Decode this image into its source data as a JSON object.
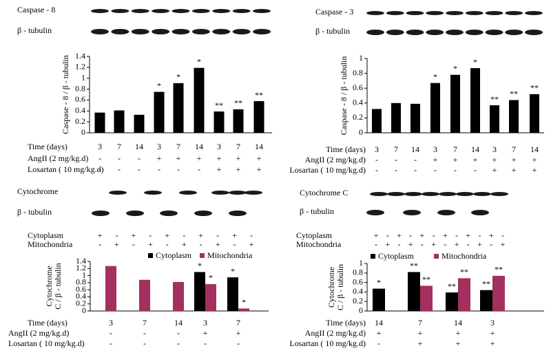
{
  "chart_data": [
    {
      "type": "bar",
      "blot_labels": [
        "Caspase - 8",
        "β - tubulin"
      ],
      "y_label": [
        "Caspase - 8 / β - tubulin"
      ],
      "categories_label": "Time (days)",
      "categories": [
        3,
        7,
        14,
        3,
        7,
        14,
        3,
        7,
        14
      ],
      "values": [
        0.37,
        0.41,
        0.33,
        0.75,
        0.91,
        1.19,
        0.39,
        0.43,
        0.58
      ],
      "annotations": [
        null,
        null,
        null,
        "*",
        "*",
        "*",
        "**",
        "**",
        "**"
      ],
      "color": "#000000",
      "ylim": [
        0,
        1.4
      ],
      "yticks": [
        0,
        0.2,
        0.4,
        0.6,
        0.8,
        1,
        1.2,
        1.4
      ],
      "rows": [
        {
          "label": "AngII (2 mg/kg.d)",
          "values": [
            "-",
            "-",
            "-",
            "+",
            "+",
            "+",
            "+",
            "+",
            "+"
          ]
        },
        {
          "label": "Losartan ( 10 mg/kg.d)",
          "values": [
            "-",
            "-",
            "-",
            "-",
            "-",
            "-",
            "+",
            "+",
            "+"
          ]
        }
      ]
    },
    {
      "type": "bar",
      "blot_labels": [
        "Caspase - 3",
        "β - tubulin"
      ],
      "y_label": [
        "Caspase - 8 / β - tubulin"
      ],
      "categories_label": "Time (days)",
      "categories": [
        3,
        7,
        14,
        3,
        7,
        14,
        3,
        7,
        14
      ],
      "values": [
        0.32,
        0.4,
        0.39,
        0.67,
        0.78,
        0.87,
        0.37,
        0.44,
        0.52
      ],
      "annotations": [
        null,
        null,
        null,
        "*",
        "*",
        "*",
        "**",
        "**",
        "**"
      ],
      "color": "#000000",
      "ylim": [
        0,
        1
      ],
      "yticks": [
        0,
        0.2,
        0.4,
        0.6,
        0.8,
        1
      ],
      "rows": [
        {
          "label": "AngII (2 mg/kg.d)",
          "values": [
            "-",
            "-",
            "-",
            "+",
            "+",
            "+",
            "+",
            "+",
            "+"
          ]
        },
        {
          "label": "Losartan ( 10 mg/kg.d)",
          "values": [
            "-",
            "-",
            "-",
            "-",
            "-",
            "-",
            "+",
            "+",
            "+"
          ]
        }
      ]
    },
    {
      "type": "grouped_bar",
      "blot_labels": [
        "Cytochrome",
        "β - tubulin"
      ],
      "y_label": [
        "Cytochrome",
        "C / β - tubulin"
      ],
      "blot_rows": [
        {
          "label": "Cytoplasm",
          "values": [
            "+",
            "-",
            "+",
            "-",
            "+",
            "-",
            "+",
            "-",
            "+",
            "-"
          ]
        },
        {
          "label": "Mitochondria",
          "values": [
            "-",
            "+",
            "-",
            "+",
            "-",
            "+",
            "-",
            "+",
            "-",
            "+"
          ]
        }
      ],
      "categories_label": "Time (days)",
      "categories": [
        3,
        7,
        14,
        3,
        7
      ],
      "series": [
        {
          "name": "Cytoplasm",
          "color": "#000000",
          "values": [
            null,
            null,
            null,
            1.1,
            0.95
          ],
          "annotations": [
            null,
            null,
            null,
            "*",
            "*"
          ]
        },
        {
          "name": "Mitochondria",
          "color": "#a3305e",
          "values": [
            1.27,
            0.88,
            0.82,
            0.76,
            0.07
          ],
          "annotations": [
            null,
            null,
            null,
            "*",
            "*"
          ]
        }
      ],
      "ylim": [
        0,
        1.4
      ],
      "yticks": [
        0,
        0.2,
        0.4,
        0.6,
        0.8,
        1,
        1.2,
        1.4
      ],
      "rows": [
        {
          "label": "AngII (2 mg/kg.d)",
          "values": [
            "-",
            "-",
            "-",
            "+",
            "+"
          ]
        },
        {
          "label": "Losartan ( 10 mg/kg.d)",
          "values": [
            "-",
            "-",
            "-",
            "-",
            "-"
          ]
        }
      ]
    },
    {
      "type": "grouped_bar",
      "blot_labels": [
        "Cytochrome  C",
        "β - tubulin"
      ],
      "y_label": [
        "Cytochrome",
        "C / β - tubulin"
      ],
      "blot_rows": [
        {
          "label": "Cytoplasm",
          "values": [
            "+",
            "-",
            "+",
            "-",
            "+",
            "-",
            "+",
            "-",
            "+",
            "-",
            "+",
            "-"
          ]
        },
        {
          "label": "Mitochondria",
          "values": [
            "-",
            "+",
            "-",
            "+",
            "-",
            "+",
            "-",
            "+",
            "-",
            "+",
            "-",
            "+"
          ]
        }
      ],
      "categories_label": "Time (days)",
      "categories": [
        14,
        7,
        14,
        3
      ],
      "series": [
        {
          "name": "Cytoplasm",
          "color": "#000000",
          "values": [
            0.47,
            0.82,
            0.39,
            0.44
          ],
          "annotations": [
            "*",
            "**",
            "**",
            "**"
          ]
        },
        {
          "name": "Mitochondria",
          "color": "#a3305e",
          "values": [
            null,
            0.53,
            0.69,
            0.74
          ],
          "annotations": [
            null,
            "**",
            "**",
            "**"
          ]
        }
      ],
      "ylim": [
        0,
        1
      ],
      "yticks": [
        0,
        0.2,
        0.4,
        0.6,
        0.8,
        1
      ],
      "rows": [
        {
          "label": "AngII (2 mg/kg.d)",
          "values": [
            "+",
            "+",
            "+",
            "+"
          ]
        },
        {
          "label": "Losartan ( 10 mg/kg.d)",
          "values": [
            "-",
            "+",
            "+",
            "+"
          ]
        }
      ]
    }
  ]
}
